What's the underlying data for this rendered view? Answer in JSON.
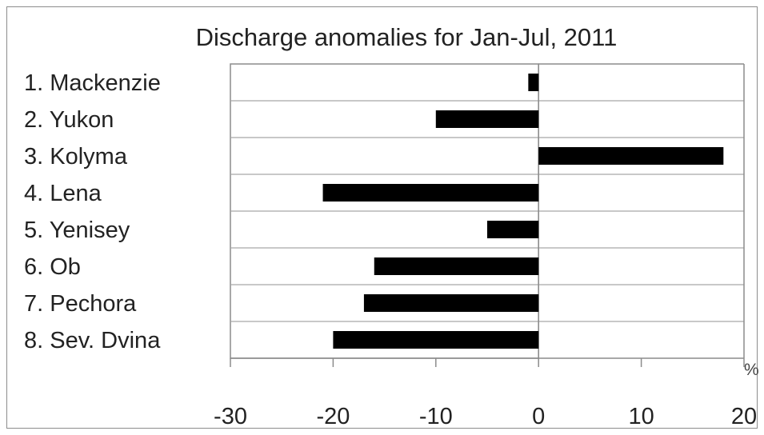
{
  "chart_data": {
    "type": "bar",
    "orientation": "horizontal",
    "title": "Discharge anomalies for Jan-Jul, 2011",
    "unit_label": "%",
    "categories": [
      "1. Mackenzie",
      "2. Yukon",
      "3. Kolyma",
      "4. Lena",
      "5. Yenisey",
      "6. Ob",
      "7. Pechora",
      "8. Sev. Dvina"
    ],
    "series": [
      {
        "values": [
          -1,
          -10,
          18,
          -21,
          -5,
          -16,
          -17,
          -20
        ]
      }
    ],
    "xlim": [
      -30,
      20
    ],
    "xticks": [
      "-30",
      "-20",
      "-10",
      "0",
      "10",
      "20"
    ],
    "bar_color": "#000000",
    "grid": true,
    "legend": "none"
  }
}
